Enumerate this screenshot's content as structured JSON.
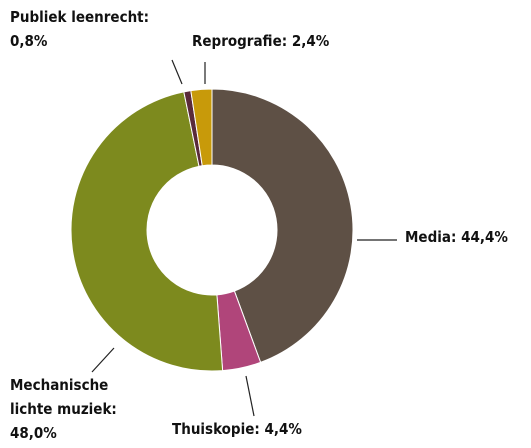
{
  "chart_data": {
    "type": "donut",
    "values": [
      44.4,
      4.4,
      48.0,
      0.8,
      2.4
    ],
    "value_labels": [
      "Media: 44,4%",
      "Thuiskopie: 4,4%",
      "Mechanische\nlichte muziek:\n48,0%",
      "Publiek leenrecht:\n0,8%",
      "Reprografie: 2,4%"
    ],
    "colors": [
      "#5e5045",
      "#b0457a",
      "#7d8a1e",
      "#5a2a3a",
      "#c89a0a"
    ]
  }
}
